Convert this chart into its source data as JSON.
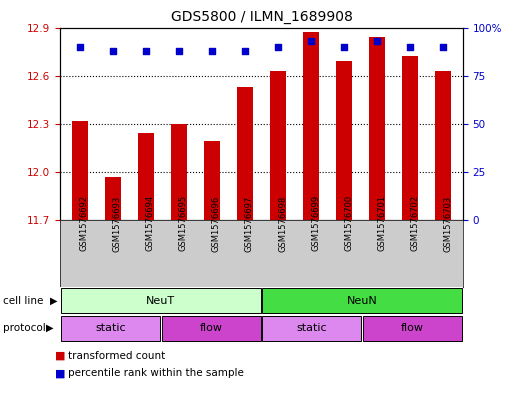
{
  "title": "GDS5800 / ILMN_1689908",
  "samples": [
    "GSM1576692",
    "GSM1576693",
    "GSM1576694",
    "GSM1576695",
    "GSM1576696",
    "GSM1576697",
    "GSM1576698",
    "GSM1576699",
    "GSM1576700",
    "GSM1576701",
    "GSM1576702",
    "GSM1576703"
  ],
  "transformed_counts": [
    12.32,
    11.97,
    12.24,
    12.3,
    12.19,
    12.53,
    12.63,
    12.87,
    12.69,
    12.84,
    12.72,
    12.63
  ],
  "percentile_ranks": [
    90,
    88,
    88,
    88,
    88,
    88,
    90,
    93,
    90,
    93,
    90,
    90
  ],
  "ylim_left": [
    11.7,
    12.9
  ],
  "ylim_right": [
    0,
    100
  ],
  "yticks_left": [
    11.7,
    12.0,
    12.3,
    12.6,
    12.9
  ],
  "yticks_right": [
    0,
    25,
    50,
    75,
    100
  ],
  "bar_color": "#cc0000",
  "dot_color": "#0000cc",
  "bar_bottom": 11.7,
  "cell_line_groups": [
    {
      "label": "NeuT",
      "start": 0,
      "end": 6,
      "color": "#ccffcc"
    },
    {
      "label": "NeuN",
      "start": 6,
      "end": 12,
      "color": "#44dd44"
    }
  ],
  "protocol_groups": [
    {
      "label": "static",
      "start": 0,
      "end": 3,
      "color": "#dd88ee"
    },
    {
      "label": "flow",
      "start": 3,
      "end": 6,
      "color": "#cc44cc"
    },
    {
      "label": "static",
      "start": 6,
      "end": 9,
      "color": "#dd88ee"
    },
    {
      "label": "flow",
      "start": 9,
      "end": 12,
      "color": "#cc44cc"
    }
  ],
  "legend_items": [
    {
      "label": "transformed count",
      "color": "#cc0000"
    },
    {
      "label": "percentile rank within the sample",
      "color": "#0000cc"
    }
  ],
  "bg_color": "#ffffff",
  "tick_color_left": "#cc0000",
  "tick_color_right": "#0000cc",
  "label_bg": "#cccccc"
}
